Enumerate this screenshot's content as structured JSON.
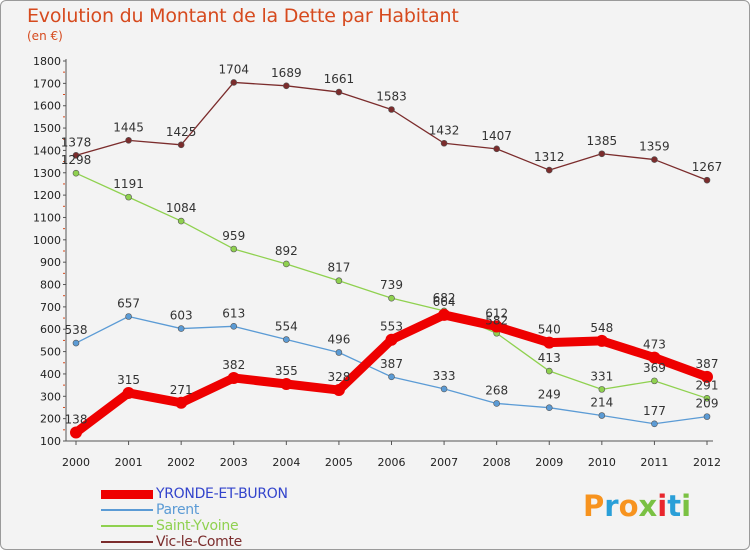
{
  "header": {
    "title": "Evolution du Montant de la Dette par Habitant",
    "unit": "(en €)"
  },
  "logo": {
    "letters": [
      "P",
      "r",
      "o",
      "x",
      "i",
      "t",
      "i"
    ],
    "colors": [
      "#f7931e",
      "#2a9fd8",
      "#f7931e",
      "#7ac143",
      "#e8262d",
      "#2a9fd8",
      "#7ac143"
    ]
  },
  "chart_data": {
    "type": "line",
    "title": "Evolution du Montant de la Dette par Habitant",
    "ylabel": "(en €)",
    "xlabel": "",
    "x": [
      "2000",
      "2001",
      "2002",
      "2003",
      "2004",
      "2005",
      "2006",
      "2007",
      "2008",
      "2009",
      "2010",
      "2011",
      "2012"
    ],
    "ylim": [
      100,
      1800
    ],
    "yticks": [
      100,
      200,
      300,
      400,
      500,
      600,
      700,
      800,
      900,
      1000,
      1100,
      1200,
      1300,
      1400,
      1500,
      1600,
      1700,
      1800
    ],
    "grid": false,
    "legend": "bottom-left",
    "series": [
      {
        "name": "YRONDE-ET-BURON",
        "color": "#ee0000",
        "values": [
          138,
          315,
          271,
          382,
          355,
          328,
          553,
          664,
          612,
          540,
          548,
          473,
          387
        ]
      },
      {
        "name": "Parent",
        "color": "#5b9bd5",
        "values": [
          538,
          657,
          603,
          613,
          554,
          496,
          387,
          333,
          268,
          249,
          214,
          177,
          209
        ]
      },
      {
        "name": "Saint-Yvoine",
        "color": "#8fd14f",
        "values": [
          1298,
          1191,
          1084,
          959,
          892,
          817,
          739,
          682,
          582,
          413,
          331,
          369,
          291
        ]
      },
      {
        "name": "Vic-le-Comte",
        "color": "#7b2c2c",
        "values": [
          1378,
          1445,
          1425,
          1704,
          1689,
          1661,
          1583,
          1432,
          1407,
          1312,
          1385,
          1359,
          1267
        ]
      }
    ]
  }
}
